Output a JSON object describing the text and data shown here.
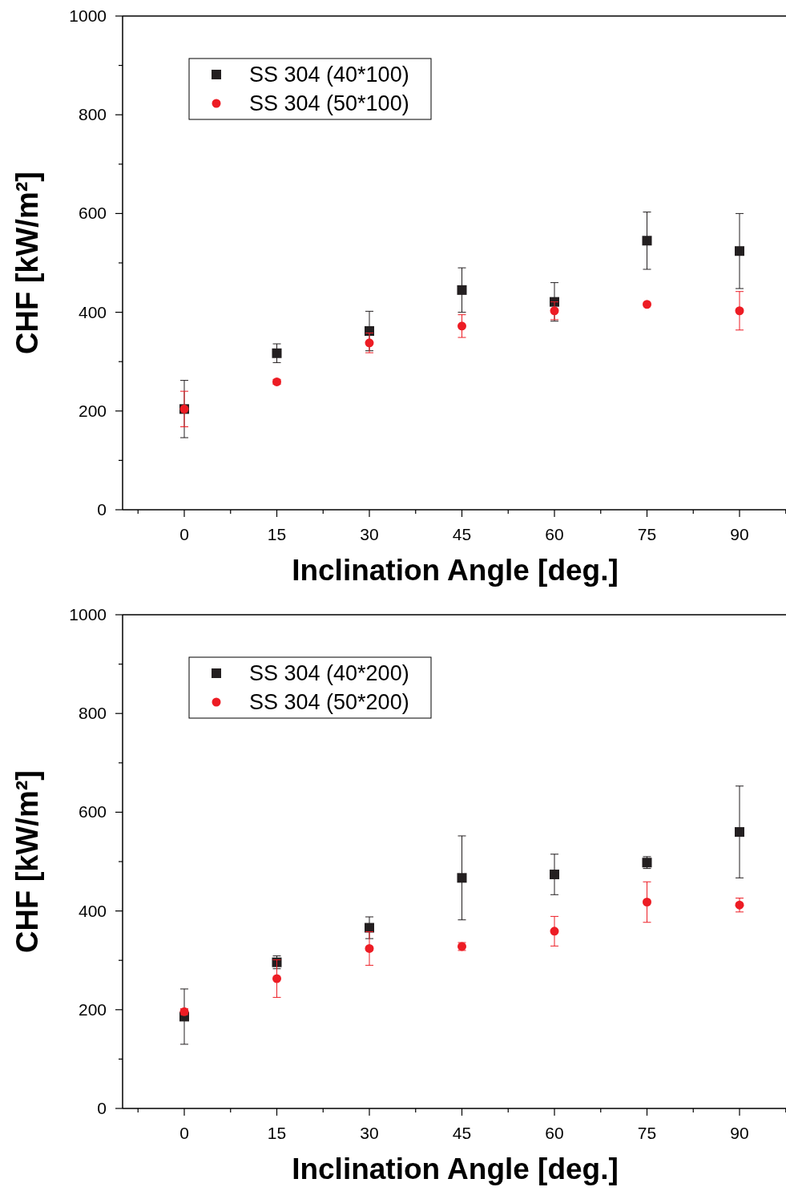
{
  "chart_data": [
    {
      "type": "scatter",
      "xlabel": "Inclination Angle [deg.]",
      "ylabel": "CHF [kW/m²]",
      "x": [
        0,
        15,
        30,
        45,
        60,
        75,
        90
      ],
      "xlim": [
        -10,
        100
      ],
      "ylim": [
        0,
        1000
      ],
      "xticks": [
        {
          "value": -7.5,
          "label": null
        },
        0,
        {
          "value": 7.5,
          "label": null
        },
        15,
        {
          "value": 22.5,
          "label": null
        },
        30,
        {
          "value": 37.5,
          "label": null
        },
        45,
        {
          "value": 52.5,
          "label": null
        },
        60,
        {
          "value": 67.5,
          "label": null
        },
        75,
        {
          "value": 82.5,
          "label": null
        },
        90,
        {
          "value": 97.5,
          "label": null
        }
      ],
      "yticks": [
        0,
        {
          "value": 100,
          "label": null
        },
        200,
        {
          "value": 300,
          "label": null
        },
        400,
        {
          "value": 500,
          "label": null
        },
        600,
        {
          "value": 700,
          "label": null
        },
        800,
        {
          "value": 900,
          "label": null
        },
        1000
      ],
      "legend": "top left",
      "grid": false,
      "series": [
        {
          "name": "SS 304 (40*100)",
          "color": "#231f20",
          "marker": "square",
          "values": [
            204,
            317,
            362,
            445,
            421,
            545,
            524
          ],
          "errors": [
            58,
            19,
            40,
            45,
            39,
            58,
            76
          ]
        },
        {
          "name": "SS 304 (50*100)",
          "color": "#ed1c24",
          "marker": "circle",
          "values": [
            204,
            259,
            338,
            372,
            403,
            416,
            403
          ],
          "errors": [
            36,
            5,
            20,
            23,
            18,
            null,
            39
          ]
        }
      ]
    },
    {
      "type": "scatter",
      "xlabel": "Inclination Angle [deg.]",
      "ylabel": "CHF [kW/m²]",
      "x": [
        0,
        15,
        30,
        45,
        60,
        75,
        90
      ],
      "xlim": [
        -10,
        100
      ],
      "ylim": [
        0,
        1000
      ],
      "xticks": [
        {
          "value": -7.5,
          "label": null
        },
        0,
        {
          "value": 7.5,
          "label": null
        },
        15,
        {
          "value": 22.5,
          "label": null
        },
        30,
        {
          "value": 37.5,
          "label": null
        },
        45,
        {
          "value": 52.5,
          "label": null
        },
        60,
        {
          "value": 67.5,
          "label": null
        },
        75,
        {
          "value": 82.5,
          "label": null
        },
        90,
        {
          "value": 97.5,
          "label": null
        }
      ],
      "yticks": [
        0,
        {
          "value": 100,
          "label": null
        },
        200,
        {
          "value": 300,
          "label": null
        },
        400,
        {
          "value": 500,
          "label": null
        },
        600,
        {
          "value": 700,
          "label": null
        },
        800,
        {
          "value": 900,
          "label": null
        },
        1000
      ],
      "legend": "top left",
      "grid": false,
      "series": [
        {
          "name": "SS 304 (40*200)",
          "color": "#231f20",
          "marker": "square",
          "values": [
            186,
            296,
            366,
            467,
            474,
            498,
            560
          ],
          "errors": [
            56,
            13,
            22,
            85,
            41,
            12,
            93
          ]
        },
        {
          "name": "SS 304 (50*200)",
          "color": "#ed1c24",
          "marker": "circle",
          "values": [
            196,
            263,
            324,
            328,
            359,
            418,
            412
          ],
          "errors": [
            6,
            38,
            34,
            8,
            30,
            41,
            14
          ]
        }
      ]
    }
  ]
}
